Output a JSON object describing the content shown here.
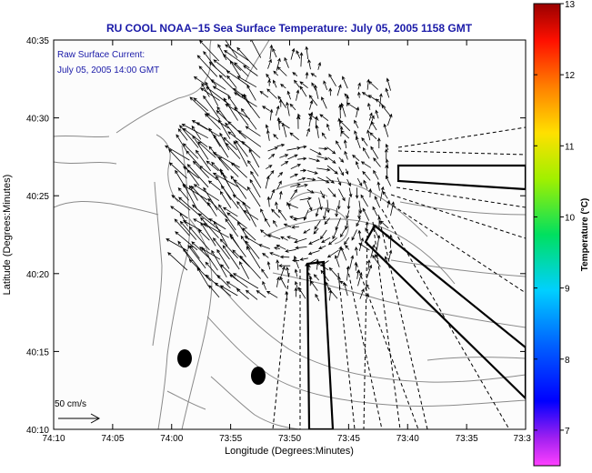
{
  "chart_data": {
    "type": "map-vector-field",
    "title": "RU COOL  NOAA−15  Sea Surface Temperature:  July 05, 2005 1158 GMT",
    "xlabel": "Longitude (Degrees:Minutes)",
    "ylabel": "Latitude (Degrees:Minutes)",
    "x_ticks": [
      "74:10",
      "74:05",
      "74:00",
      "73:55",
      "73:50",
      "73:45",
      "73:40",
      "73:35",
      "73:3"
    ],
    "y_ticks": [
      "40:10",
      "40:15",
      "40:20",
      "40:25",
      "40:30",
      "40:35"
    ],
    "xlim_minutes_west": [
      4450,
      4410
    ],
    "ylim_minutes_north": [
      2410,
      2435
    ],
    "annotation_lines": [
      "Raw Surface Current:",
      "July 05, 2005 14:00 GMT"
    ],
    "scale_label": "50 cm/s",
    "colorbar": {
      "label": "Temperature (°C)",
      "range": [
        6.5,
        13
      ],
      "ticks": [
        "7",
        "8",
        "9",
        "10",
        "11",
        "12",
        "13"
      ]
    },
    "colors": {
      "title": "#1a1aa8",
      "annotation": "#1a1aa8",
      "vectors": "#000000",
      "coast": "#8a8a8a"
    }
  }
}
